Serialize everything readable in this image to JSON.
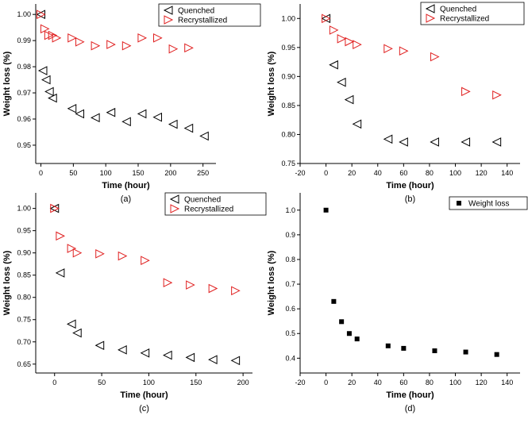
{
  "chart_data": [
    {
      "id": "a",
      "type": "scatter",
      "panel_label": "(a)",
      "xlabel": "Time (hour)",
      "ylabel": "Weight loss (%)",
      "xlim": [
        -8,
        270
      ],
      "ylim": [
        0.943,
        1.004
      ],
      "xticks": [
        0,
        50,
        100,
        150,
        200,
        250
      ],
      "xtick_labels": [
        "0",
        "50",
        "100",
        "150",
        "200",
        "250"
      ],
      "yticks": [
        0.95,
        0.96,
        0.97,
        0.98,
        0.99,
        1.0
      ],
      "ytick_labels": [
        "0.95",
        "0.96",
        "0.97",
        "0.98",
        "0.99",
        "1.00"
      ],
      "legend_position": "top-right",
      "series": [
        {
          "name": "Quenched",
          "marker": "triangle-left",
          "color": "#000000",
          "x": [
            0,
            3,
            8,
            13,
            18,
            48,
            60,
            84,
            108,
            132,
            156,
            180,
            204,
            228,
            252
          ],
          "y": [
            1.0,
            0.9785,
            0.975,
            0.9705,
            0.968,
            0.964,
            0.962,
            0.9605,
            0.9625,
            0.959,
            0.962,
            0.9607,
            0.958,
            0.9565,
            0.9535
          ]
        },
        {
          "name": "Recrystallized",
          "marker": "triangle-right",
          "color": "#e02020",
          "x": [
            0,
            6,
            12,
            18,
            24,
            48,
            60,
            84,
            108,
            132,
            156,
            180,
            204,
            228
          ],
          "y": [
            1.0,
            0.9945,
            0.992,
            0.992,
            0.991,
            0.991,
            0.9895,
            0.988,
            0.9885,
            0.988,
            0.991,
            0.991,
            0.9868,
            0.9872
          ]
        }
      ]
    },
    {
      "id": "b",
      "type": "scatter",
      "panel_label": "(b)",
      "xlabel": "Time (hour)",
      "ylabel": "Weight loss (%)",
      "xlim": [
        -20,
        150
      ],
      "ylim": [
        0.75,
        1.025
      ],
      "xticks": [
        -20,
        0,
        20,
        40,
        60,
        80,
        100,
        120,
        140
      ],
      "xtick_labels": [
        "-20",
        "0",
        "20",
        "40",
        "60",
        "80",
        "100",
        "120",
        "140"
      ],
      "yticks": [
        0.75,
        0.8,
        0.85,
        0.9,
        0.95,
        1.0
      ],
      "ytick_labels": [
        "0.75",
        "0.80",
        "0.85",
        "0.90",
        "0.95",
        "1.00"
      ],
      "legend_position": "top-right",
      "series": [
        {
          "name": "Quenched",
          "marker": "triangle-left",
          "color": "#000000",
          "x": [
            0,
            6,
            12,
            18,
            24,
            48,
            60,
            84,
            108,
            132
          ],
          "y": [
            1.0,
            0.92,
            0.89,
            0.86,
            0.818,
            0.792,
            0.787,
            0.787,
            0.787,
            0.787
          ]
        },
        {
          "name": "Recrystallized",
          "marker": "triangle-right",
          "color": "#e02020",
          "x": [
            0,
            6,
            12,
            18,
            24,
            48,
            60,
            84,
            108,
            132
          ],
          "y": [
            1.0,
            0.98,
            0.965,
            0.96,
            0.955,
            0.948,
            0.944,
            0.934,
            0.874,
            0.868
          ]
        }
      ]
    },
    {
      "id": "c",
      "type": "scatter",
      "panel_label": "(c)",
      "xlabel": "Time (hour)",
      "ylabel": "Weight loss (%)",
      "xlim": [
        -20,
        210
      ],
      "ylim": [
        0.63,
        1.035
      ],
      "xticks": [
        0,
        50,
        100,
        150,
        200
      ],
      "xtick_labels": [
        "0",
        "50",
        "100",
        "150",
        "200"
      ],
      "yticks": [
        0.65,
        0.7,
        0.75,
        0.8,
        0.85,
        0.9,
        0.95,
        1.0
      ],
      "ytick_labels": [
        "0.65",
        "0.70",
        "0.75",
        "0.80",
        "0.85",
        "0.90",
        "0.95",
        "1.00"
      ],
      "legend_position": "top-right",
      "series": [
        {
          "name": "Quenched",
          "marker": "triangle-left",
          "color": "#000000",
          "x": [
            0,
            6,
            18,
            24,
            48,
            72,
            96,
            120,
            144,
            168,
            192
          ],
          "y": [
            1.0,
            0.855,
            0.74,
            0.72,
            0.692,
            0.682,
            0.675,
            0.67,
            0.665,
            0.66,
            0.658
          ]
        },
        {
          "name": "Recrystallized",
          "marker": "triangle-right",
          "color": "#e02020",
          "x": [
            0,
            6,
            18,
            24,
            48,
            72,
            96,
            120,
            144,
            168,
            192
          ],
          "y": [
            1.0,
            0.938,
            0.91,
            0.9,
            0.898,
            0.893,
            0.883,
            0.833,
            0.828,
            0.82,
            0.815
          ]
        }
      ]
    },
    {
      "id": "d",
      "type": "scatter",
      "panel_label": "(d)",
      "xlabel": "Time (hour)",
      "ylabel": "Weight loss (%)",
      "xlim": [
        -20,
        150
      ],
      "ylim": [
        0.34,
        1.07
      ],
      "xticks": [
        -20,
        0,
        20,
        40,
        60,
        80,
        100,
        120,
        140
      ],
      "xtick_labels": [
        "-20",
        "0",
        "20",
        "40",
        "60",
        "80",
        "100",
        "120",
        "140"
      ],
      "yticks": [
        0.4,
        0.5,
        0.6,
        0.7,
        0.8,
        0.9,
        1.0
      ],
      "ytick_labels": [
        "0.4",
        "0.5",
        "0.6",
        "0.7",
        "0.8",
        "0.9",
        "1.0"
      ],
      "legend_position": "top-right",
      "series": [
        {
          "name": "Weight loss",
          "marker": "square",
          "color": "#000000",
          "x": [
            0,
            6,
            12,
            18,
            24,
            48,
            60,
            84,
            108,
            132
          ],
          "y": [
            1.0,
            0.63,
            0.548,
            0.5,
            0.478,
            0.45,
            0.44,
            0.43,
            0.425,
            0.415
          ]
        }
      ]
    }
  ]
}
